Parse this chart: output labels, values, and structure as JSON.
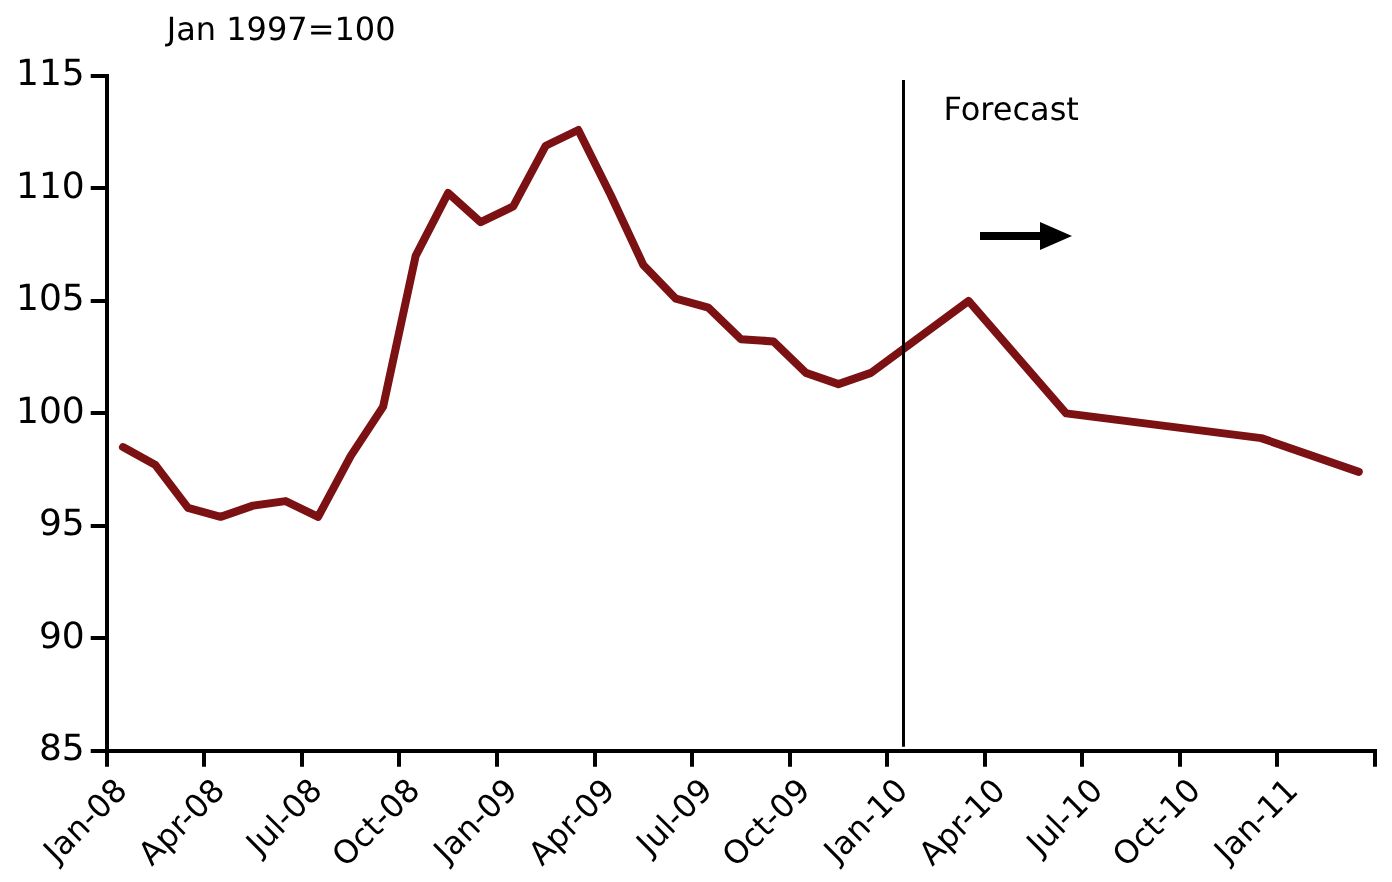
{
  "chart_data": {
    "type": "line",
    "annotations": [
      "Jan 1997=100"
    ],
    "categories": [
      "Jan-08",
      null,
      null,
      "Apr-08",
      null,
      null,
      "Jul-08",
      null,
      null,
      "Oct-08",
      null,
      null,
      "Jan-09",
      null,
      null,
      "Apr-09",
      null,
      null,
      "Jul-09",
      null,
      null,
      "Oct-09",
      null,
      null,
      "Jan-10",
      null,
      null,
      "Apr-10",
      null,
      null,
      "Jul-10",
      null,
      null,
      "Oct-10",
      null,
      null,
      "Jan-11",
      null,
      null
    ],
    "series": [
      {
        "color": "#7b1113",
        "values": [
          98.5,
          97.7,
          95.8,
          95.4,
          95.9,
          96.1,
          95.4,
          98.1,
          100.3,
          107.0,
          109.8,
          108.5,
          109.2,
          111.9,
          112.6,
          109.7,
          106.6,
          105.1,
          104.7,
          103.3,
          103.2,
          101.8,
          101.3,
          101.8,
          null,
          null,
          105.0,
          null,
          null,
          100.0,
          null,
          null,
          null,
          null,
          null,
          98.9,
          null,
          null,
          97.4
        ]
      }
    ],
    "ylim": [
      85,
      115
    ],
    "yticks": [
      85,
      90,
      95,
      100,
      105,
      110,
      115
    ],
    "ref_lines": [
      {
        "axis": "x",
        "value": "Jan-10",
        "label": "Forecast",
        "color": "#000000"
      }
    ]
  }
}
